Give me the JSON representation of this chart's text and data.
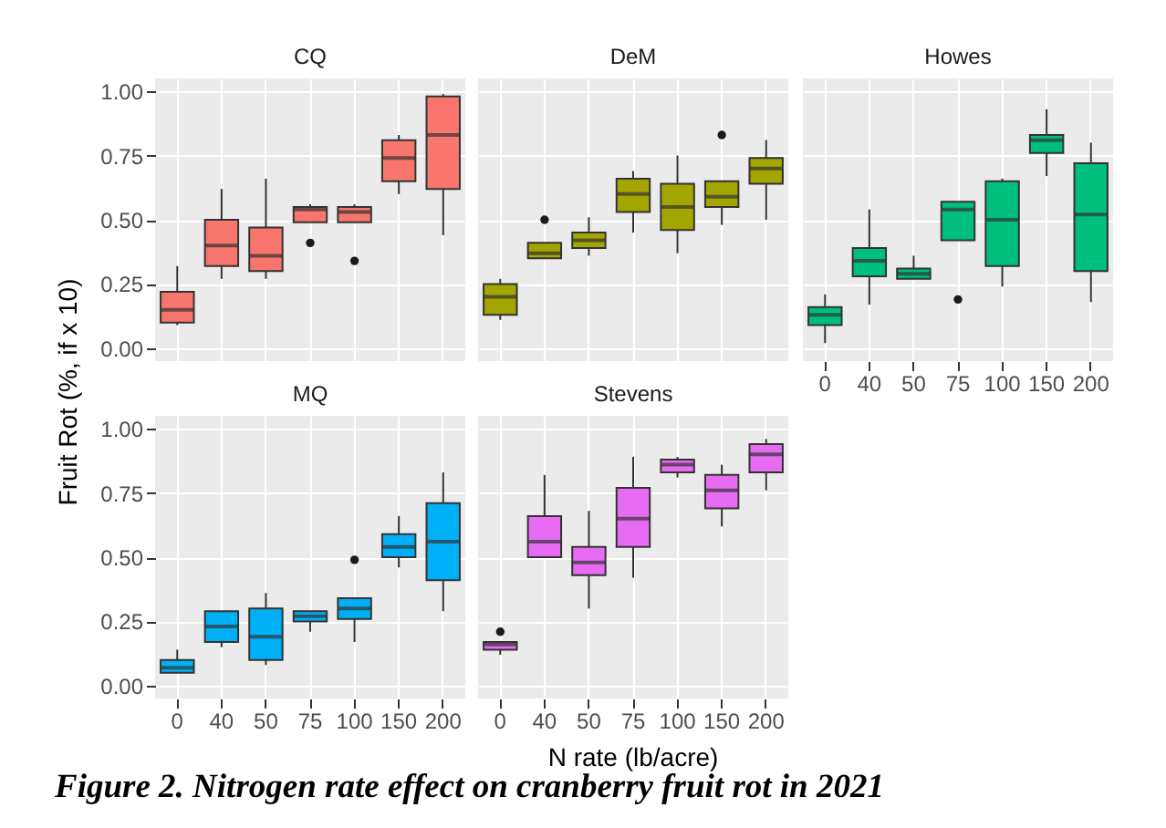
{
  "chart_data": [
    {
      "type": "box",
      "title": "CQ",
      "categories": [
        "0",
        "40",
        "50",
        "75",
        "100",
        "150",
        "200"
      ],
      "color": "#f8766d",
      "ylim": [
        -0.05,
        1.05
      ],
      "yticks": [
        {
          "value": 0,
          "label": "0.00"
        },
        {
          "value": 0.25,
          "label": "0.25"
        },
        {
          "value": 0.5,
          "label": "0.50"
        },
        {
          "value": 0.75,
          "label": "0.75"
        },
        {
          "value": 1,
          "label": "1.00"
        }
      ],
      "grid": true,
      "tick_labels": "y",
      "boxes": [
        {
          "low": 0.09,
          "q1": 0.1,
          "median": 0.15,
          "q3": 0.22,
          "high": 0.32
        },
        {
          "low": 0.27,
          "q1": 0.32,
          "median": 0.4,
          "q3": 0.5,
          "high": 0.62
        },
        {
          "low": 0.27,
          "q1": 0.3,
          "median": 0.36,
          "q3": 0.47,
          "high": 0.66
        },
        {
          "low": 0.49,
          "q1": 0.49,
          "median": 0.54,
          "q3": 0.55,
          "high": 0.56,
          "outliers": [
            0.41
          ]
        },
        {
          "low": 0.49,
          "q1": 0.49,
          "median": 0.53,
          "q3": 0.55,
          "high": 0.56,
          "outliers": [
            0.34
          ]
        },
        {
          "low": 0.6,
          "q1": 0.65,
          "median": 0.74,
          "q3": 0.81,
          "high": 0.83
        },
        {
          "low": 0.44,
          "q1": 0.62,
          "median": 0.83,
          "q3": 0.98,
          "high": 0.99
        }
      ]
    },
    {
      "type": "box",
      "title": "DeM",
      "categories": [
        "0",
        "40",
        "50",
        "75",
        "100",
        "150",
        "200"
      ],
      "color": "#a3a500",
      "ylim": [
        -0.05,
        1.05
      ],
      "yticks": [
        {
          "value": 0,
          "label": null
        },
        {
          "value": 0.25,
          "label": null
        },
        {
          "value": 0.5,
          "label": null
        },
        {
          "value": 0.75,
          "label": null
        },
        {
          "value": 1,
          "label": null
        }
      ],
      "grid": true,
      "tick_labels": false,
      "boxes": [
        {
          "low": 0.11,
          "q1": 0.13,
          "median": 0.2,
          "q3": 0.25,
          "high": 0.27
        },
        {
          "low": 0.35,
          "q1": 0.35,
          "median": 0.37,
          "q3": 0.41,
          "high": 0.41,
          "outliers": [
            0.5
          ]
        },
        {
          "low": 0.36,
          "q1": 0.39,
          "median": 0.42,
          "q3": 0.45,
          "high": 0.51
        },
        {
          "low": 0.45,
          "q1": 0.53,
          "median": 0.6,
          "q3": 0.66,
          "high": 0.69
        },
        {
          "low": 0.37,
          "q1": 0.46,
          "median": 0.55,
          "q3": 0.64,
          "high": 0.75
        },
        {
          "low": 0.48,
          "q1": 0.55,
          "median": 0.59,
          "q3": 0.65,
          "high": 0.65,
          "outliers": [
            0.83
          ]
        },
        {
          "low": 0.5,
          "q1": 0.64,
          "median": 0.7,
          "q3": 0.74,
          "high": 0.81
        }
      ]
    },
    {
      "type": "box",
      "title": "Howes",
      "categories": [
        "0",
        "40",
        "50",
        "75",
        "100",
        "150",
        "200"
      ],
      "color": "#00bf7d",
      "ylim": [
        -0.05,
        1.05
      ],
      "yticks": [
        {
          "value": 0,
          "label": null
        },
        {
          "value": 0.25,
          "label": null
        },
        {
          "value": 0.5,
          "label": null
        },
        {
          "value": 0.75,
          "label": null
        },
        {
          "value": 1,
          "label": null
        }
      ],
      "grid": true,
      "tick_labels": "x",
      "boxes": [
        {
          "low": 0.02,
          "q1": 0.09,
          "median": 0.13,
          "q3": 0.16,
          "high": 0.21
        },
        {
          "low": 0.17,
          "q1": 0.28,
          "median": 0.34,
          "q3": 0.39,
          "high": 0.54
        },
        {
          "low": 0.27,
          "q1": 0.27,
          "median": 0.29,
          "q3": 0.31,
          "high": 0.36
        },
        {
          "low": 0.42,
          "q1": 0.42,
          "median": 0.54,
          "q3": 0.57,
          "high": 0.57,
          "outliers": [
            0.19
          ]
        },
        {
          "low": 0.24,
          "q1": 0.32,
          "median": 0.5,
          "q3": 0.65,
          "high": 0.66
        },
        {
          "low": 0.67,
          "q1": 0.76,
          "median": 0.81,
          "q3": 0.83,
          "high": 0.93
        },
        {
          "low": 0.18,
          "q1": 0.3,
          "median": 0.52,
          "q3": 0.72,
          "high": 0.8
        }
      ]
    },
    {
      "type": "box",
      "title": "MQ",
      "ylabel": "Fruit Rot (%, if x 10)",
      "categories": [
        "0",
        "40",
        "50",
        "75",
        "100",
        "150",
        "200"
      ],
      "color": "#00b0f6",
      "ylim": [
        -0.05,
        1.05
      ],
      "yticks": [
        {
          "value": 0,
          "label": "0.00"
        },
        {
          "value": 0.25,
          "label": "0.25"
        },
        {
          "value": 0.5,
          "label": "0.50"
        },
        {
          "value": 0.75,
          "label": "0.75"
        },
        {
          "value": 1,
          "label": "1.00"
        }
      ],
      "grid": true,
      "boxes": [
        {
          "low": 0.05,
          "q1": 0.05,
          "median": 0.07,
          "q3": 0.1,
          "high": 0.14
        },
        {
          "low": 0.15,
          "q1": 0.17,
          "median": 0.23,
          "q3": 0.29,
          "high": 0.29
        },
        {
          "low": 0.08,
          "q1": 0.1,
          "median": 0.19,
          "q3": 0.3,
          "high": 0.36
        },
        {
          "low": 0.21,
          "q1": 0.25,
          "median": 0.27,
          "q3": 0.29,
          "high": 0.29
        },
        {
          "low": 0.17,
          "q1": 0.26,
          "median": 0.3,
          "q3": 0.34,
          "high": 0.34,
          "outliers": [
            0.49
          ]
        },
        {
          "low": 0.46,
          "q1": 0.5,
          "median": 0.54,
          "q3": 0.59,
          "high": 0.66
        },
        {
          "low": 0.29,
          "q1": 0.41,
          "median": 0.56,
          "q3": 0.71,
          "high": 0.83
        }
      ]
    },
    {
      "type": "box",
      "title": "Stevens",
      "xlabel": "N rate (lb/acre)",
      "annotations": [
        "Figure 2. Nitrogen rate effect on cranberry fruit rot in 2021"
      ],
      "categories": [
        "0",
        "40",
        "50",
        "75",
        "100",
        "150",
        "200"
      ],
      "color": "#e76bf3",
      "ylim": [
        -0.05,
        1.05
      ],
      "yticks": [
        {
          "value": 0,
          "label": null
        },
        {
          "value": 0.25,
          "label": null
        },
        {
          "value": 0.5,
          "label": null
        },
        {
          "value": 0.75,
          "label": null
        },
        {
          "value": 1,
          "label": null
        }
      ],
      "grid": true,
      "tick_labels": "x",
      "boxes": [
        {
          "low": 0.12,
          "q1": 0.14,
          "median": 0.16,
          "q3": 0.17,
          "high": 0.17,
          "outliers": [
            0.21
          ]
        },
        {
          "low": 0.5,
          "q1": 0.5,
          "median": 0.56,
          "q3": 0.66,
          "high": 0.82
        },
        {
          "low": 0.3,
          "q1": 0.43,
          "median": 0.48,
          "q3": 0.54,
          "high": 0.68
        },
        {
          "low": 0.42,
          "q1": 0.54,
          "median": 0.65,
          "q3": 0.77,
          "high": 0.89
        },
        {
          "low": 0.81,
          "q1": 0.83,
          "median": 0.86,
          "q3": 0.88,
          "high": 0.89
        },
        {
          "low": 0.62,
          "q1": 0.69,
          "median": 0.76,
          "q3": 0.82,
          "high": 0.86
        },
        {
          "low": 0.76,
          "q1": 0.83,
          "median": 0.9,
          "q3": 0.94,
          "high": 0.96
        }
      ]
    }
  ]
}
